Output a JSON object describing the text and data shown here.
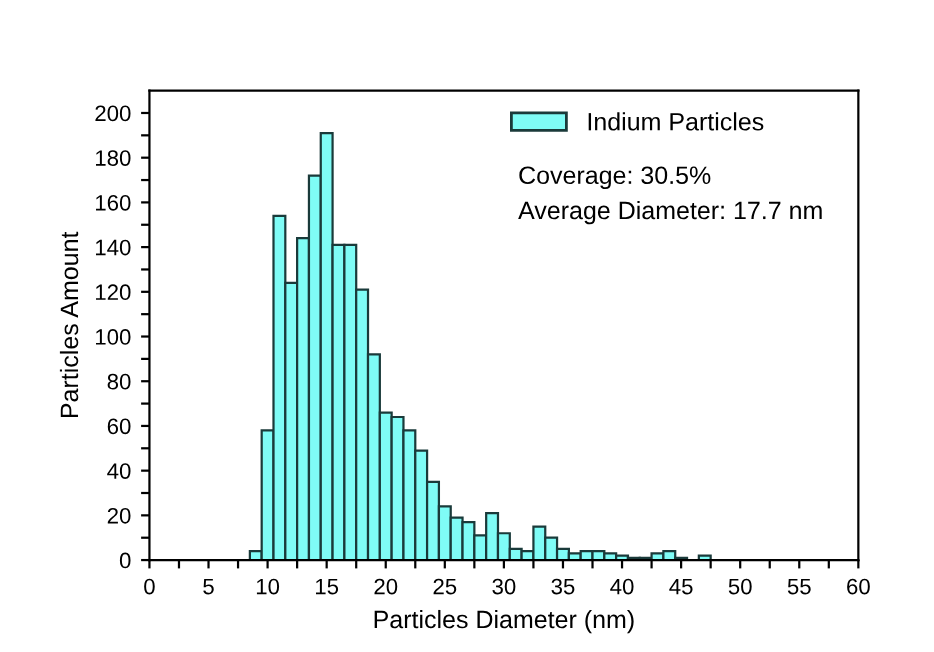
{
  "chart_data": {
    "type": "histogram",
    "xlabel": "Particles Diameter (nm)",
    "ylabel": "Particles Amount",
    "bins": [
      8.5,
      9.5,
      10.5,
      11.5,
      12.5,
      13.5,
      14.5,
      15.5,
      16.5,
      17.5,
      18.5,
      19.5,
      20.5,
      21.5,
      22.5,
      23.5,
      24.5,
      25.5,
      26.5,
      27.5,
      28.5,
      29.5,
      30.5,
      31.5,
      32.5,
      33.5,
      34.5,
      35.5,
      36.5,
      37.5,
      38.5,
      39.5,
      40.5,
      41.5,
      42.5,
      43.5,
      44.5,
      45.5,
      46.5,
      47.5
    ],
    "series": [
      {
        "name": "Indium Particles",
        "color": "#7ffcf6",
        "values": [
          4,
          58,
          154,
          124,
          144,
          172,
          191,
          141,
          141,
          121,
          92,
          66,
          64,
          58,
          49,
          35,
          24,
          19,
          17,
          11,
          21,
          12,
          5,
          4,
          15,
          10,
          5,
          3,
          4,
          4,
          3,
          2,
          1,
          1,
          3,
          4,
          1,
          0,
          2
        ]
      }
    ],
    "annotations": [
      "Coverage: 30.5%",
      "Average Diameter: 17.7 nm"
    ],
    "xlim": [
      0,
      60
    ],
    "ylim": [
      0,
      210
    ],
    "xticks": [
      0,
      {
        "value": 2.5,
        "label": null
      },
      5,
      {
        "value": 7.5,
        "label": null
      },
      10,
      {
        "value": 12.5,
        "label": null
      },
      15,
      {
        "value": 17.5,
        "label": null
      },
      20,
      {
        "value": 22.5,
        "label": null
      },
      25,
      {
        "value": 27.5,
        "label": null
      },
      30,
      {
        "value": 32.5,
        "label": null
      },
      35,
      {
        "value": 37.5,
        "label": null
      },
      40,
      {
        "value": 42.5,
        "label": null
      },
      45,
      {
        "value": 47.5,
        "label": null
      },
      50,
      {
        "value": 52.5,
        "label": null
      },
      55,
      {
        "value": 57.5,
        "label": null
      },
      60
    ],
    "yticks": [
      0,
      {
        "value": 10,
        "label": null
      },
      20,
      {
        "value": 30,
        "label": null
      },
      40,
      {
        "value": 50,
        "label": null
      },
      60,
      {
        "value": 70,
        "label": null
      },
      80,
      {
        "value": 90,
        "label": null
      },
      100,
      {
        "value": 110,
        "label": null
      },
      120,
      {
        "value": 130,
        "label": null
      },
      140,
      {
        "value": 150,
        "label": null
      },
      160,
      {
        "value": 170,
        "label": null
      },
      180,
      {
        "value": 190,
        "label": null
      },
      200
    ],
    "legend": "top right",
    "grid": false
  }
}
